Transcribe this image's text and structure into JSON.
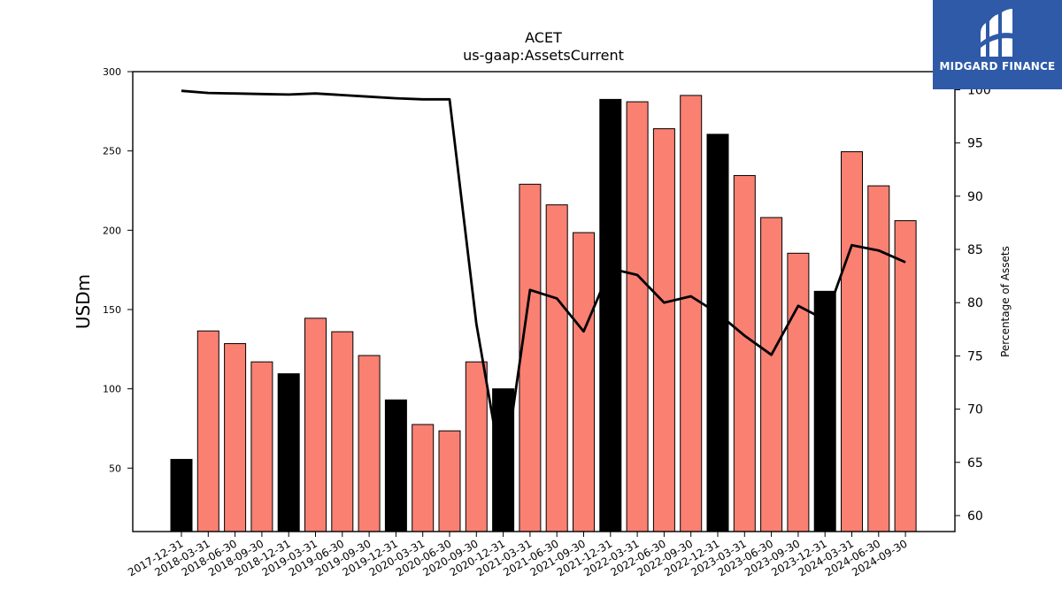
{
  "logo": {
    "text": "MIDGARD FINANCE",
    "background": "#2e5aa8"
  },
  "chart_data": {
    "type": "bar",
    "title": "ACET",
    "subtitle": "us-gaap:AssetsCurrent",
    "ylabel": "USDm",
    "y2label": "Percentage of Assets",
    "ylim": [
      10,
      300
    ],
    "y2lim": [
      58.5,
      101.7
    ],
    "yticks": [
      50,
      100,
      150,
      200,
      250,
      300
    ],
    "y2ticks": [
      60,
      65,
      70,
      75,
      80,
      85,
      90,
      95,
      100
    ],
    "categories": [
      "2017-12-31",
      "2018-03-31",
      "2018-06-30",
      "2018-09-30",
      "2018-12-31",
      "2019-03-31",
      "2019-06-30",
      "2019-09-30",
      "2019-12-31",
      "2020-03-31",
      "2020-06-30",
      "2020-09-30",
      "2020-12-31",
      "2021-03-31",
      "2021-06-30",
      "2021-09-30",
      "2021-12-31",
      "2022-03-31",
      "2022-06-30",
      "2022-09-30",
      "2022-12-31",
      "2023-03-31",
      "2023-06-30",
      "2023-09-30",
      "2023-12-31",
      "2024-03-31",
      "2024-06-30",
      "2024-09-30"
    ],
    "values": [
      55.5,
      136.5,
      128.5,
      117,
      109.5,
      144.5,
      136,
      121,
      93,
      77.5,
      73.5,
      117,
      100,
      229,
      216,
      198.5,
      282.5,
      281,
      264,
      285,
      260.5,
      234.5,
      208,
      185.5,
      161.5,
      249.5,
      228,
      206
    ],
    "annual": [
      true,
      false,
      false,
      false,
      true,
      false,
      false,
      false,
      true,
      false,
      false,
      false,
      true,
      false,
      false,
      false,
      true,
      false,
      false,
      false,
      true,
      false,
      false,
      false,
      true,
      false,
      false,
      false
    ],
    "percent": [
      99.9,
      99.7,
      99.65,
      99.6,
      99.55,
      99.65,
      99.5,
      99.35,
      99.2,
      99.1,
      99.1,
      78.0,
      63.5,
      81.2,
      80.4,
      77.3,
      83.2,
      82.6,
      80.0,
      80.6,
      79.0,
      76.9,
      75.1,
      79.7,
      78.4,
      85.4,
      84.9,
      83.8
    ],
    "colors": {
      "annual": "#000000",
      "quarterly": "#fa8072",
      "line": "#000000"
    },
    "grid": false
  }
}
